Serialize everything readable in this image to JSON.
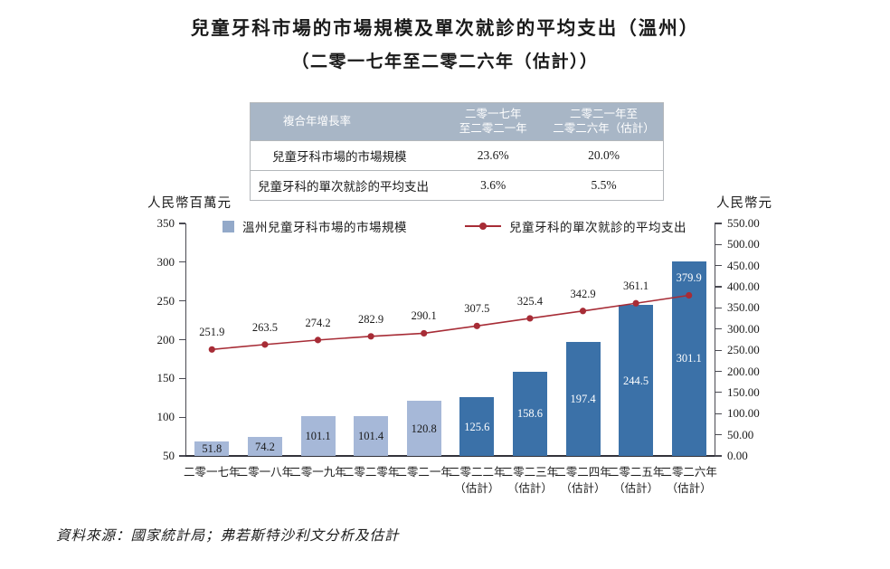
{
  "title": {
    "line1": "兒童牙科市場的市場規模及單次就診的平均支出（溫州）",
    "line2": "（二零一七年至二零二六年（估計））"
  },
  "cagr_table": {
    "header": [
      "複合年增長率",
      "二零一七年\n至二零二一年",
      "二零二一年至\n二零二六年（估計）"
    ],
    "rows": [
      {
        "label": "兒童牙科市場的市場規模",
        "period1": "23.6%",
        "period2": "20.0%"
      },
      {
        "label": "兒童牙科的單次就診的平均支出",
        "period1": "3.6%",
        "period2": "5.5%"
      }
    ],
    "header_bg": "#a8b6c6"
  },
  "chart_data": {
    "type": "bar+line",
    "categories": [
      "二零一七年",
      "二零一八年",
      "二零一九年",
      "二零二零年",
      "二零二一年",
      "二零二二年\n（估計）",
      "二零二三年\n（估計）",
      "二零二四年\n（估計）",
      "二零二五年\n（估計）",
      "二零二六年\n（估計）"
    ],
    "estimate_start_index": 5,
    "series": [
      {
        "name": "溫州兒童牙科市場的市場規模",
        "type": "bar",
        "axis": "left",
        "values": [
          51.8,
          74.2,
          101.1,
          101.4,
          120.8,
          125.6,
          158.6,
          197.4,
          244.5,
          301.1
        ],
        "color_historical": "#a6b8d8",
        "color_estimate": "#3b71a8",
        "legend_color": "#93a9c9"
      },
      {
        "name": "兒童牙科的單次就診的平均支出",
        "type": "line",
        "axis": "right",
        "values": [
          251.9,
          263.5,
          274.2,
          282.9,
          290.1,
          307.5,
          325.4,
          342.9,
          361.1,
          379.9
        ],
        "color": "#a72c36"
      }
    ],
    "left_axis": {
      "label": "人民幣百萬元",
      "min": 50,
      "max": 350,
      "tick_labels": [
        "350",
        "300",
        "250",
        "200",
        "150",
        "100",
        "50"
      ]
    },
    "right_axis": {
      "label": "人民幣元",
      "min": 0,
      "max": 550,
      "tick_labels": [
        "550.00",
        "500.00",
        "450.00",
        "400.00",
        "350.00",
        "300.00",
        "250.00",
        "200.00",
        "150.00",
        "100.00",
        "50.00",
        "0.00"
      ]
    },
    "grid": "off",
    "legend_position": "top"
  },
  "source": "資料來源：國家統計局；弗若斯特沙利文分析及估計"
}
